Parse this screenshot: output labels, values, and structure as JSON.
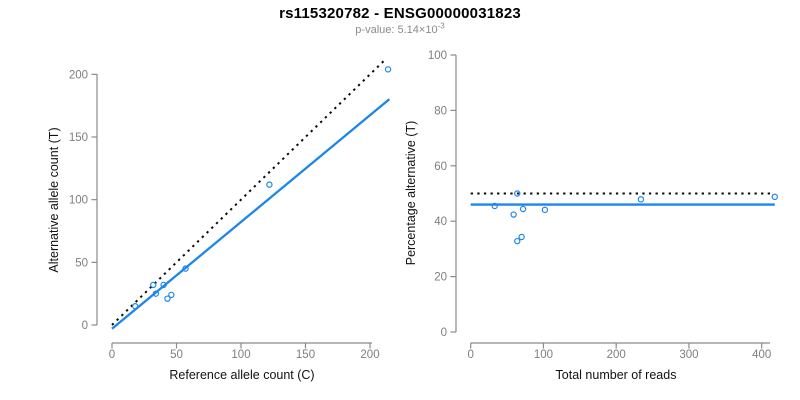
{
  "figure": {
    "title": "rs115320782 - ENSG00000031823",
    "subtitle": {
      "prefix": "p-value: 5.14×10",
      "exponent": "-3"
    }
  },
  "colors": {
    "accent_blue": "#1E86E8",
    "reference_black": "#0a0a0a",
    "axis_gray": "#8a8a8a",
    "tick_label_gray": "#7e7e7e",
    "label_black": "#111111",
    "subtitle_gray": "#8a8a8a",
    "background": "#ffffff"
  },
  "chart_data": [
    {
      "id": "allele-counts-scatter",
      "type": "scatter",
      "title": "",
      "xlabel": "Reference allele count (C)",
      "ylabel": "Alternative allele count (T)",
      "xlim": [
        0,
        215
      ],
      "ylim": [
        0,
        215
      ],
      "xticks": [
        0,
        50,
        100,
        150,
        200
      ],
      "yticks": [
        0,
        50,
        100,
        150,
        200
      ],
      "grid": false,
      "legend": "none",
      "point_style": "open-circle",
      "points": [
        [
          18,
          15
        ],
        [
          32,
          32
        ],
        [
          34,
          25
        ],
        [
          40,
          32
        ],
        [
          43,
          21
        ],
        [
          46,
          24
        ],
        [
          57,
          45
        ],
        [
          122,
          112
        ],
        [
          214,
          204
        ]
      ],
      "trend_line": {
        "type": "linear",
        "slope": 0.852,
        "intercept": -3,
        "x_range": [
          0,
          215
        ],
        "style": "solid",
        "color_key": "accent_blue"
      },
      "reference_line": {
        "type": "identity",
        "slope": 1,
        "intercept": 0,
        "x_range": [
          0,
          212
        ],
        "style": "dotted",
        "color_key": "reference_black"
      }
    },
    {
      "id": "percentage-vs-reads-scatter",
      "type": "scatter",
      "title": "",
      "xlabel": "Total number of reads",
      "ylabel": "Percentage alternative (T)",
      "xlim": [
        0,
        440
      ],
      "ylim": [
        0,
        100
      ],
      "xticks": [
        0,
        100,
        200,
        300,
        400
      ],
      "yticks": [
        0,
        20,
        40,
        60,
        80,
        100
      ],
      "grid": false,
      "legend": "none",
      "point_style": "open-circle",
      "points": [
        [
          33,
          45.5
        ],
        [
          64,
          50
        ],
        [
          59,
          42.4
        ],
        [
          72,
          44.4
        ],
        [
          64,
          32.8
        ],
        [
          70,
          34.3
        ],
        [
          102,
          44.1
        ],
        [
          234,
          47.9
        ],
        [
          418,
          48.8
        ]
      ],
      "trend_line": {
        "type": "horizontal",
        "value": 46,
        "x_range": [
          0,
          418
        ],
        "style": "solid",
        "color_key": "accent_blue"
      },
      "reference_line": {
        "type": "horizontal",
        "value": 50,
        "x_range": [
          0,
          414
        ],
        "style": "dotted",
        "color_key": "reference_black"
      }
    }
  ]
}
